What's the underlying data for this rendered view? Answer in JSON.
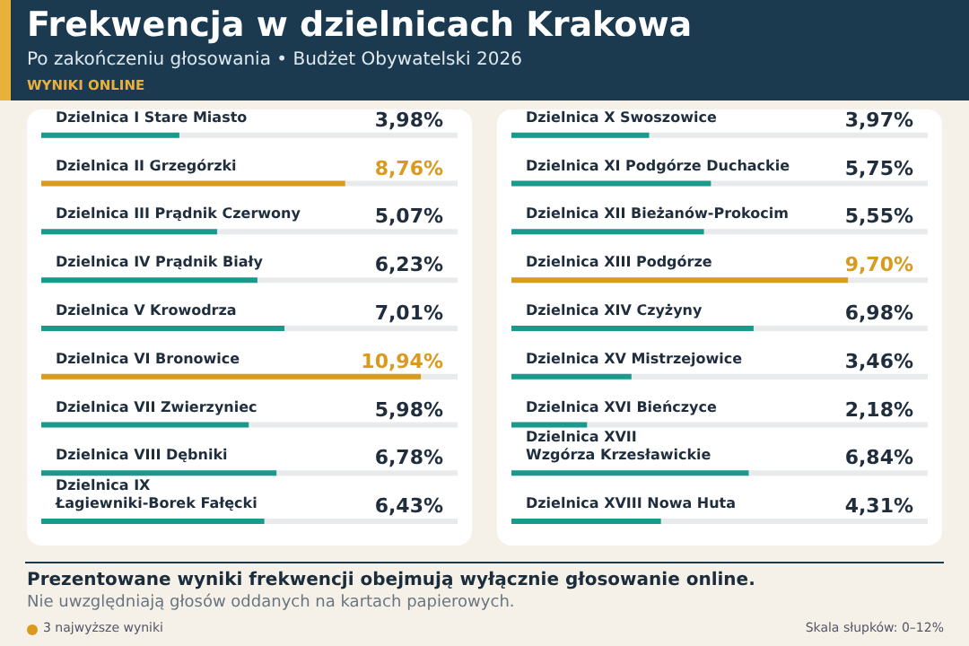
{
  "chart_data": [
    {
      "type": "bar",
      "title": "Frekwencja w dzielnicach Krakowa",
      "subtitle": "Po zakończeniu głosowania • Budżet Obywatelski 2026",
      "orientation": "horizontal",
      "categories": [
        "Dzielnica I Stare Miasto",
        "Dzielnica II Grzegórzki",
        "Dzielnica III Prądnik Czerwony",
        "Dzielnica IV Prądnik Biały",
        "Dzielnica V Krowodrza",
        "Dzielnica VI Bronowice",
        "Dzielnica VII Zwierzyniec",
        "Dzielnica VIII Dębniki",
        "Dzielnica IX\nŁagiewniki-Borek Fałęcki"
      ],
      "values": [
        3.98,
        8.76,
        5.07,
        6.23,
        7.01,
        10.94,
        5.98,
        6.78,
        6.43
      ],
      "value_labels": [
        "3,98%",
        "8,76%",
        "5,07%",
        "6,23%",
        "7,01%",
        "10,94%",
        "5,98%",
        "6,78%",
        "6,43%"
      ],
      "colors": [
        "#1a9a8c",
        "#d99a1e",
        "#1a9a8c",
        "#1a9a8c",
        "#1a9a8c",
        "#d99a1e",
        "#1a9a8c",
        "#1a9a8c",
        "#1a9a8c"
      ],
      "xlim": [
        0,
        12
      ],
      "tick_labels": false,
      "annotations": [
        "WYNIKI ONLINE",
        "Prezentowane wyniki frekwencji obejmują wyłącznie głosowanie online.",
        "Nie uwzględniają głosów oddanych na kartach papierowych.",
        "3 najwyższe wyniki",
        "Skala słupków: 0–12%"
      ]
    },
    {
      "type": "bar",
      "orientation": "horizontal",
      "categories": [
        "Dzielnica X Swoszowice",
        "Dzielnica XI Podgórze Duchackie",
        "Dzielnica XII Bieżanów-Prokocim",
        "Dzielnica XIII Podgórze",
        "Dzielnica XIV Czyżyny",
        "Dzielnica XV Mistrzejowice",
        "Dzielnica XVI Bieńczyce",
        "Dzielnica XVII\nWzgórza Krzesławickie",
        "Dzielnica XVIII Nowa Huta"
      ],
      "values": [
        3.97,
        5.75,
        5.55,
        9.7,
        6.98,
        3.46,
        2.18,
        6.84,
        4.31
      ],
      "value_labels": [
        "3,97%",
        "5,75%",
        "5,55%",
        "9,70%",
        "6,98%",
        "3,46%",
        "2,18%",
        "6,84%",
        "4,31%"
      ],
      "colors": [
        "#1a9a8c",
        "#1a9a8c",
        "#1a9a8c",
        "#d99a1e",
        "#1a9a8c",
        "#1a9a8c",
        "#1a9a8c",
        "#1a9a8c",
        "#1a9a8c"
      ],
      "xlim": [
        0,
        12
      ],
      "tick_labels": false
    }
  ]
}
